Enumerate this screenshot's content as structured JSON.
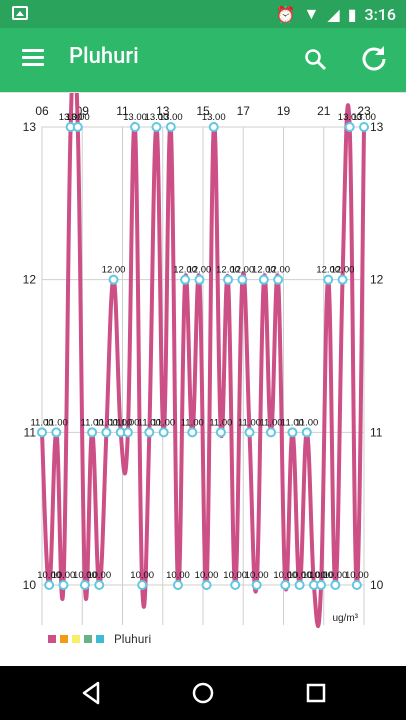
{
  "status_bar": {
    "time": "3:16"
  },
  "app_bar": {
    "title": "Pluhuri"
  },
  "chart_data": {
    "type": "line",
    "x_ticks": [
      "06",
      "09",
      "11",
      "13",
      "15",
      "17",
      "19",
      "21",
      "23"
    ],
    "y_ticks": [
      "10",
      "11",
      "12",
      "13"
    ],
    "unit_label": "ug/m³",
    "series": [
      {
        "name": "Pluhuri",
        "values": [
          11,
          10,
          11,
          10,
          13,
          13,
          10,
          11,
          10,
          11,
          12,
          11,
          11,
          13,
          10,
          11,
          13,
          11,
          13,
          10,
          12,
          11,
          12,
          10,
          13,
          11,
          12,
          10,
          12,
          11,
          10,
          12,
          11,
          12,
          10,
          11,
          10,
          11,
          10,
          10,
          12,
          10,
          12,
          13,
          10,
          13
        ]
      }
    ],
    "ylim": [
      10,
      13
    ],
    "legend": {
      "label": "Pluhuri",
      "colors": [
        "#cc4f86",
        "#f39c12",
        "#f7ef6a",
        "#6ab187",
        "#3bbdd1"
      ]
    },
    "line_color": "#cc4f86",
    "point_color": "#61c8e4"
  }
}
